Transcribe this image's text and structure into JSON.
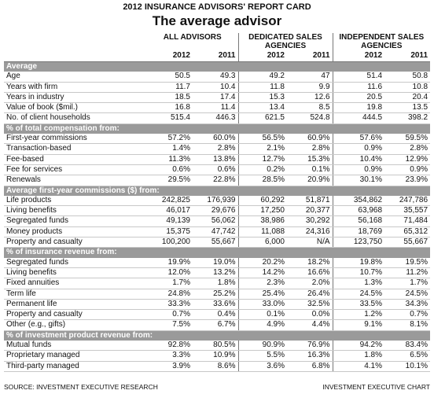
{
  "header": {
    "kicker": "2012 INSURANCE ADVISORS' REPORT CARD",
    "title": "The average advisor"
  },
  "columns": {
    "groups": [
      {
        "name": "ALL ADVISORS",
        "years": [
          "2012",
          "2011"
        ]
      },
      {
        "name": "DEDICATED SALES AGENCIES",
        "years": [
          "2012",
          "2011"
        ]
      },
      {
        "name": "INDEPENDENT SALES AGENCIES",
        "years": [
          "2012",
          "2011"
        ]
      }
    ]
  },
  "sections": [
    {
      "title": "Average",
      "rows": [
        {
          "label": "Age",
          "values": [
            "50.5",
            "49.3",
            "49.2",
            "47",
            "51.4",
            "50.8"
          ]
        },
        {
          "label": "Years with firm",
          "values": [
            "11.7",
            "10.4",
            "11.8",
            "9.9",
            "11.6",
            "10.8"
          ]
        },
        {
          "label": "Years in industry",
          "values": [
            "18.5",
            "17.4",
            "15.3",
            "12.6",
            "20.5",
            "20.4"
          ]
        },
        {
          "label": "Value of book ($mil.)",
          "values": [
            "16.8",
            "11.4",
            "13.4",
            "8.5",
            "19.8",
            "13.5"
          ]
        },
        {
          "label": "No. of client households",
          "values": [
            "515.4",
            "446.3",
            "621.5",
            "524.8",
            "444.5",
            "398.2"
          ]
        }
      ]
    },
    {
      "title": "% of total compensation from:",
      "rows": [
        {
          "label": "First-year commissions",
          "values": [
            "57.2%",
            "60.0%",
            "56.5%",
            "60.9%",
            "57.6%",
            "59.5%"
          ]
        },
        {
          "label": "Transaction-based",
          "values": [
            "1.4%",
            "2.8%",
            "2.1%",
            "2.8%",
            "0.9%",
            "2.8%"
          ]
        },
        {
          "label": "Fee-based",
          "values": [
            "11.3%",
            "13.8%",
            "12.7%",
            "15.3%",
            "10.4%",
            "12.9%"
          ]
        },
        {
          "label": "Fee for services",
          "values": [
            "0.6%",
            "0.6%",
            "0.2%",
            "0.1%",
            "0.9%",
            "0.9%"
          ]
        },
        {
          "label": "Renewals",
          "values": [
            "29.5%",
            "22.8%",
            "28.5%",
            "20.9%",
            "30.1%",
            "23.9%"
          ]
        }
      ]
    },
    {
      "title": "Average first-year commissions ($) from:",
      "rows": [
        {
          "label": "Life products",
          "values": [
            "242,825",
            "176,939",
            "60,292",
            "51,871",
            "354,862",
            "247,786"
          ]
        },
        {
          "label": "Living benefits",
          "values": [
            "46,017",
            "29,676",
            "17,250",
            "20,377",
            "63,968",
            "35,557"
          ]
        },
        {
          "label": "Segregated funds",
          "values": [
            "49,139",
            "56,062",
            "38,986",
            "30,292",
            "56,168",
            "71,484"
          ]
        },
        {
          "label": "Money products",
          "values": [
            "15,375",
            "47,742",
            "11,088",
            "24,316",
            "18,769",
            "65,312"
          ]
        },
        {
          "label": "Property and casualty",
          "values": [
            "100,200",
            "55,667",
            "6,000",
            "N/A",
            "123,750",
            "55,667"
          ]
        }
      ]
    },
    {
      "title": "% of insurance revenue from:",
      "rows": [
        {
          "label": "Segregated funds",
          "values": [
            "19.9%",
            "19.0%",
            "20.2%",
            "18.2%",
            "19.8%",
            "19.5%"
          ]
        },
        {
          "label": "Living benefits",
          "values": [
            "12.0%",
            "13.2%",
            "14.2%",
            "16.6%",
            "10.7%",
            "11.2%"
          ]
        },
        {
          "label": "Fixed annuities",
          "values": [
            "1.7%",
            "1.8%",
            "2.3%",
            "2.0%",
            "1.3%",
            "1.7%"
          ]
        },
        {
          "label": "Term life",
          "values": [
            "24.8%",
            "25.2%",
            "25.4%",
            "26.4%",
            "24.5%",
            "24.5%"
          ]
        },
        {
          "label": "Permanent life",
          "values": [
            "33.3%",
            "33.6%",
            "33.0%",
            "32.5%",
            "33.5%",
            "34.3%"
          ]
        },
        {
          "label": "Property and casualty",
          "values": [
            "0.7%",
            "0.4%",
            "0.1%",
            "0.0%",
            "1.2%",
            "0.7%"
          ]
        },
        {
          "label": "Other (e.g., gifts)",
          "values": [
            "7.5%",
            "6.7%",
            "4.9%",
            "4.4%",
            "9.1%",
            "8.1%"
          ]
        }
      ]
    },
    {
      "title": "% of investment product revenue from:",
      "rows": [
        {
          "label": "Mutual funds",
          "values": [
            "92.8%",
            "80.5%",
            "90.9%",
            "76.9%",
            "94.2%",
            "83.4%"
          ]
        },
        {
          "label": "Proprietary managed",
          "values": [
            "3.3%",
            "10.9%",
            "5.5%",
            "16.3%",
            "1.8%",
            "6.5%"
          ]
        },
        {
          "label": "Third-party managed",
          "values": [
            "3.9%",
            "8.6%",
            "3.6%",
            "6.8%",
            "4.1%",
            "10.1%"
          ]
        }
      ]
    }
  ],
  "footer": {
    "source": "SOURCE: INVESTMENT EXECUTIVE RESEARCH",
    "credit": "INVESTMENT EXECUTIVE CHART"
  }
}
